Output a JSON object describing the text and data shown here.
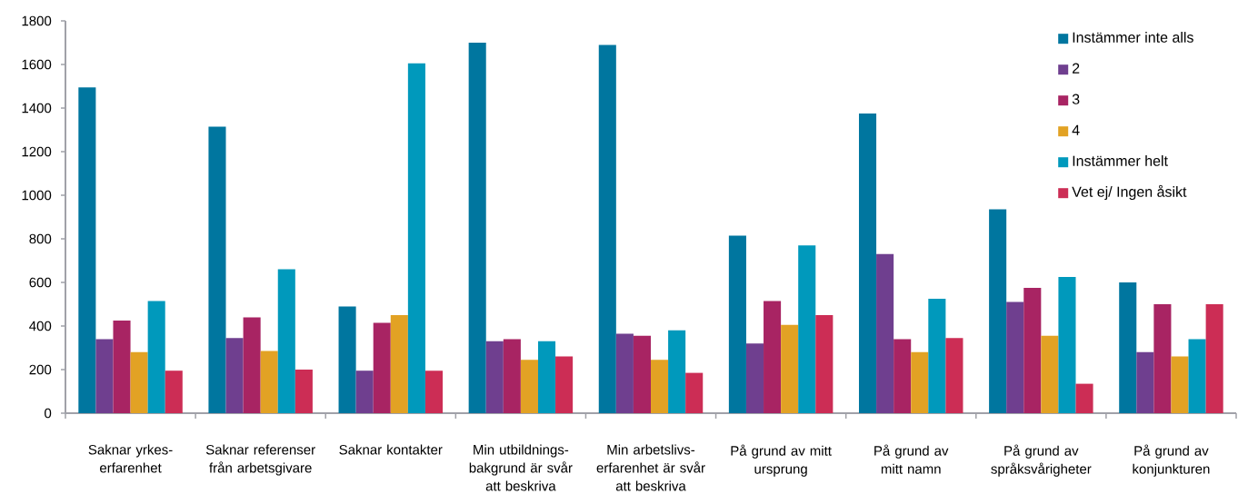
{
  "chart_data": {
    "type": "bar",
    "categories": [
      "Saknar yrkes-\nerfarenhet",
      "Saknar referenser\nfrån arbetsgivare",
      "Saknar kontakter",
      "Min utbildnings-\nbakgrund är svår\natt beskriva",
      "Min arbetslivs-\nerfarenhet är svår\natt beskriva",
      "På grund av mitt\nursprung",
      "På grund av\nmitt namn",
      "På grund av\nspråksvårigheter",
      "På grund av\nkonjunkturen"
    ],
    "series": [
      {
        "name": "Instämmer inte alls",
        "color": "#00769f",
        "values": [
          1495,
          1315,
          490,
          1700,
          1690,
          815,
          1375,
          935,
          600
        ]
      },
      {
        "name": "2",
        "color": "#6f3f8f",
        "values": [
          340,
          345,
          195,
          330,
          365,
          320,
          730,
          510,
          280
        ]
      },
      {
        "name": "3",
        "color": "#a82463",
        "values": [
          425,
          440,
          415,
          340,
          355,
          515,
          340,
          575,
          500
        ]
      },
      {
        "name": "4",
        "color": "#e2a224",
        "values": [
          280,
          285,
          450,
          245,
          245,
          405,
          280,
          355,
          260
        ]
      },
      {
        "name": "Instämmer helt",
        "color": "#0099bc",
        "values": [
          515,
          660,
          1605,
          330,
          380,
          770,
          525,
          625,
          340
        ]
      },
      {
        "name": "Vet ej/ Ingen åsikt",
        "color": "#cc2d55",
        "values": [
          195,
          200,
          195,
          260,
          185,
          450,
          345,
          135,
          500
        ]
      }
    ],
    "ylim": [
      0,
      1800
    ],
    "yticks": [
      0,
      200,
      400,
      600,
      800,
      1000,
      1200,
      1400,
      1600,
      1800
    ],
    "legend": "top right"
  }
}
